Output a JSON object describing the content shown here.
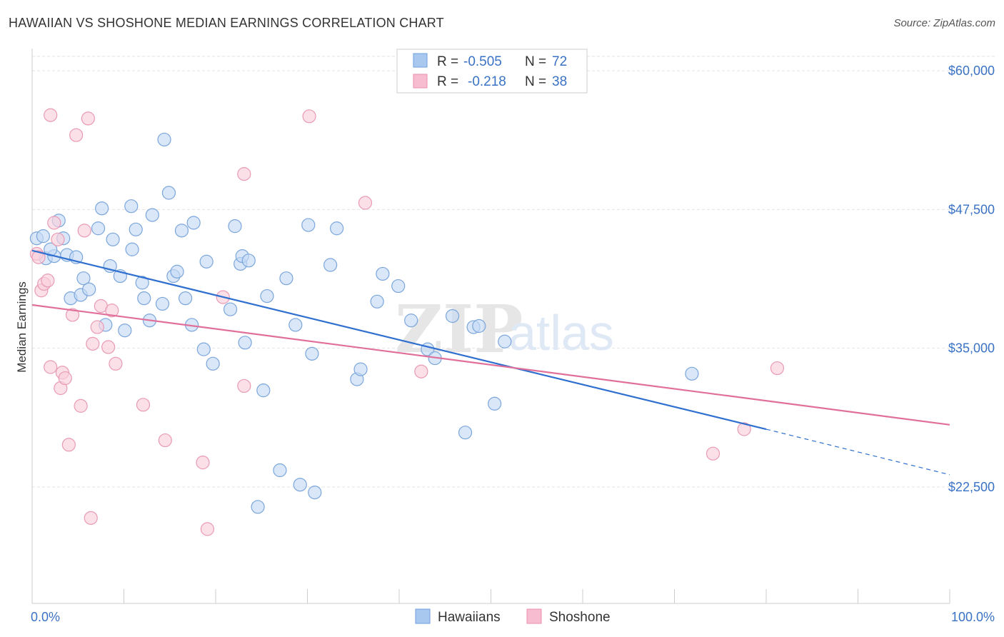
{
  "title": "HAWAIIAN VS SHOSHONE MEDIAN EARNINGS CORRELATION CHART",
  "source_label": "Source: ZipAtlas.com",
  "watermark": {
    "zip": "ZIP",
    "atlas": "atlas"
  },
  "legend": {
    "r_label": "R =",
    "n_label": "N =",
    "rows": [
      {
        "r": "-0.505",
        "n": "72",
        "color": "#a8c8f0",
        "stroke": "#6f9fdc"
      },
      {
        "r": "-0.218",
        "n": "38",
        "color": "#f7bcd0",
        "stroke": "#e891ae"
      }
    ]
  },
  "colors": {
    "hawaiians_fill": "#c5daf4",
    "hawaiians_stroke": "#7ba6dc",
    "hawaiians_line": "#2f6fcf",
    "shoshone_fill": "#f9cfdc",
    "shoshone_stroke": "#e99ab5",
    "shoshone_line": "#e0709a",
    "tick_label": "#3a72c4"
  },
  "chart_data": {
    "type": "scatter",
    "title": "HAWAIIAN VS SHOSHONE MEDIAN EARNINGS CORRELATION CHART",
    "xlabel": "",
    "ylabel": "Median Earnings",
    "xlim": [
      0,
      100
    ],
    "ylim": [
      12000,
      62000
    ],
    "x_tick_labels": [
      "0.0%",
      "100.0%"
    ],
    "y_ticks": [
      22500,
      35000,
      47500,
      60000
    ],
    "y_tick_labels": [
      "$22,500",
      "$35,000",
      "$47,500",
      "$60,000"
    ],
    "grid": true,
    "legend_position": "top-center",
    "series": [
      {
        "name": "Hawaiians",
        "points": [
          [
            0.5,
            44900
          ],
          [
            1.2,
            45100
          ],
          [
            1.5,
            43100
          ],
          [
            2.4,
            43300
          ],
          [
            2.9,
            46500
          ],
          [
            3.4,
            44900
          ],
          [
            3.8,
            43400
          ],
          [
            4.2,
            39500
          ],
          [
            4.8,
            43200
          ],
          [
            5.3,
            39800
          ],
          [
            5.6,
            41300
          ],
          [
            6.2,
            40300
          ],
          [
            7.2,
            45800
          ],
          [
            7.6,
            47600
          ],
          [
            8.0,
            37100
          ],
          [
            8.5,
            42400
          ],
          [
            8.8,
            44800
          ],
          [
            9.6,
            41500
          ],
          [
            10.1,
            36600
          ],
          [
            10.8,
            47800
          ],
          [
            10.9,
            43900
          ],
          [
            11.3,
            45700
          ],
          [
            12.0,
            40900
          ],
          [
            12.2,
            39500
          ],
          [
            12.8,
            37500
          ],
          [
            13.1,
            47000
          ],
          [
            14.2,
            39000
          ],
          [
            14.4,
            53800
          ],
          [
            14.9,
            49000
          ],
          [
            15.4,
            41500
          ],
          [
            15.8,
            41900
          ],
          [
            16.3,
            45600
          ],
          [
            16.7,
            39500
          ],
          [
            17.4,
            37100
          ],
          [
            17.6,
            46300
          ],
          [
            18.7,
            34900
          ],
          [
            19.0,
            42800
          ],
          [
            19.7,
            33600
          ],
          [
            21.6,
            38500
          ],
          [
            22.1,
            46000
          ],
          [
            22.7,
            42600
          ],
          [
            22.9,
            43300
          ],
          [
            23.2,
            35500
          ],
          [
            23.6,
            42900
          ],
          [
            24.6,
            20700
          ],
          [
            25.2,
            31200
          ],
          [
            25.6,
            39700
          ],
          [
            27.0,
            24000
          ],
          [
            27.7,
            41300
          ],
          [
            28.7,
            37100
          ],
          [
            29.2,
            22700
          ],
          [
            30.1,
            46100
          ],
          [
            30.5,
            34500
          ],
          [
            30.8,
            22000
          ],
          [
            32.5,
            42500
          ],
          [
            33.2,
            45800
          ],
          [
            35.4,
            32200
          ],
          [
            35.8,
            33100
          ],
          [
            37.6,
            39200
          ],
          [
            38.2,
            41700
          ],
          [
            39.9,
            40600
          ],
          [
            41.3,
            37500
          ],
          [
            43.1,
            34900
          ],
          [
            43.9,
            34100
          ],
          [
            45.8,
            37900
          ],
          [
            47.2,
            27400
          ],
          [
            48.1,
            36900
          ],
          [
            48.7,
            37000
          ],
          [
            50.4,
            30000
          ],
          [
            51.5,
            35600
          ],
          [
            71.9,
            32700
          ],
          [
            2.0,
            43900
          ]
        ]
      },
      {
        "name": "Shoshone",
        "points": [
          [
            0.5,
            43500
          ],
          [
            0.7,
            43200
          ],
          [
            1.0,
            40200
          ],
          [
            1.3,
            40800
          ],
          [
            1.7,
            41100
          ],
          [
            2.0,
            33300
          ],
          [
            2.4,
            46300
          ],
          [
            2.8,
            44800
          ],
          [
            3.1,
            31400
          ],
          [
            3.3,
            32800
          ],
          [
            3.6,
            32300
          ],
          [
            4.0,
            26300
          ],
          [
            4.4,
            38000
          ],
          [
            4.8,
            54200
          ],
          [
            5.3,
            29800
          ],
          [
            5.7,
            45600
          ],
          [
            6.1,
            55700
          ],
          [
            6.6,
            35400
          ],
          [
            7.1,
            36900
          ],
          [
            7.5,
            38800
          ],
          [
            8.3,
            35100
          ],
          [
            8.7,
            38400
          ],
          [
            9.1,
            33600
          ],
          [
            2.0,
            56000
          ],
          [
            6.4,
            19700
          ],
          [
            12.1,
            29900
          ],
          [
            14.5,
            26700
          ],
          [
            18.6,
            24700
          ],
          [
            19.1,
            18700
          ],
          [
            20.8,
            39600
          ],
          [
            23.1,
            31600
          ],
          [
            23.1,
            50700
          ],
          [
            30.2,
            55900
          ],
          [
            36.3,
            48100
          ],
          [
            42.4,
            32900
          ],
          [
            74.2,
            25500
          ],
          [
            77.6,
            27700
          ],
          [
            81.2,
            33200
          ]
        ]
      }
    ],
    "trend_lines": [
      {
        "name": "Hawaiians",
        "x": [
          0,
          80,
          100
        ],
        "y": [
          43800,
          27700,
          23600
        ],
        "dashed_from_x": 80
      },
      {
        "name": "Shoshone",
        "x": [
          0,
          100
        ],
        "y": [
          38900,
          28100
        ]
      }
    ]
  }
}
